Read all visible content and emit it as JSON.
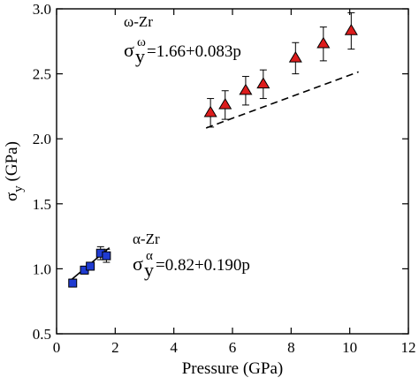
{
  "chart_data": {
    "type": "scatter",
    "xlabel": "Pressure (GPa)",
    "ylabel": {
      "symbol": "σ",
      "subscript": "y",
      "unit": " (GPa)"
    },
    "xlim": [
      0,
      12
    ],
    "ylim": [
      0.5,
      3.0
    ],
    "xticks": [
      0,
      2,
      4,
      6,
      8,
      10,
      12
    ],
    "yticks": [
      0.5,
      1.0,
      1.5,
      2.0,
      2.5,
      3.0
    ],
    "xtick_labels": [
      "0",
      "2",
      "4",
      "6",
      "8",
      "10",
      "12"
    ],
    "ytick_labels": [
      "0.5",
      "1.0",
      "1.5",
      "2.0",
      "2.5",
      "3.0"
    ],
    "grid": false,
    "series": [
      {
        "name": "α-Zr",
        "marker": "square",
        "color": "#1f3bd1",
        "points": [
          {
            "x": 0.55,
            "y": 0.89,
            "err": 0.03
          },
          {
            "x": 0.95,
            "y": 0.99,
            "err": 0.03
          },
          {
            "x": 1.15,
            "y": 1.02,
            "err": 0.03
          },
          {
            "x": 1.5,
            "y": 1.12,
            "err": 0.05
          },
          {
            "x": 1.7,
            "y": 1.1,
            "err": 0.05
          }
        ],
        "fit": {
          "intercept": 0.82,
          "slope": 0.19,
          "x_range": [
            0.5,
            1.8
          ],
          "style": "solid"
        },
        "annotation": {
          "name": "α-Zr",
          "base": "σ",
          "sub": "y",
          "sup": "α",
          "rest": "=0.82+0.190p"
        }
      },
      {
        "name": "ω-Zr",
        "marker": "triangle",
        "color": "#dd1c1c",
        "points": [
          {
            "x": 5.25,
            "y": 2.2,
            "err": 0.11
          },
          {
            "x": 5.75,
            "y": 2.26,
            "err": 0.11
          },
          {
            "x": 6.45,
            "y": 2.37,
            "err": 0.11
          },
          {
            "x": 7.05,
            "y": 2.42,
            "err": 0.11
          },
          {
            "x": 8.15,
            "y": 2.62,
            "err": 0.12
          },
          {
            "x": 9.1,
            "y": 2.73,
            "err": 0.13
          },
          {
            "x": 10.05,
            "y": 2.83,
            "err": 0.14
          }
        ],
        "fit": {
          "intercept": 1.66,
          "slope": 0.083,
          "x_range": [
            5.1,
            10.3
          ],
          "style": "dashed"
        },
        "annotation": {
          "name": "ω-Zr",
          "base": "σ",
          "sub": "y",
          "sup": "ω",
          "rest": "=1.66+0.083p"
        }
      }
    ]
  }
}
